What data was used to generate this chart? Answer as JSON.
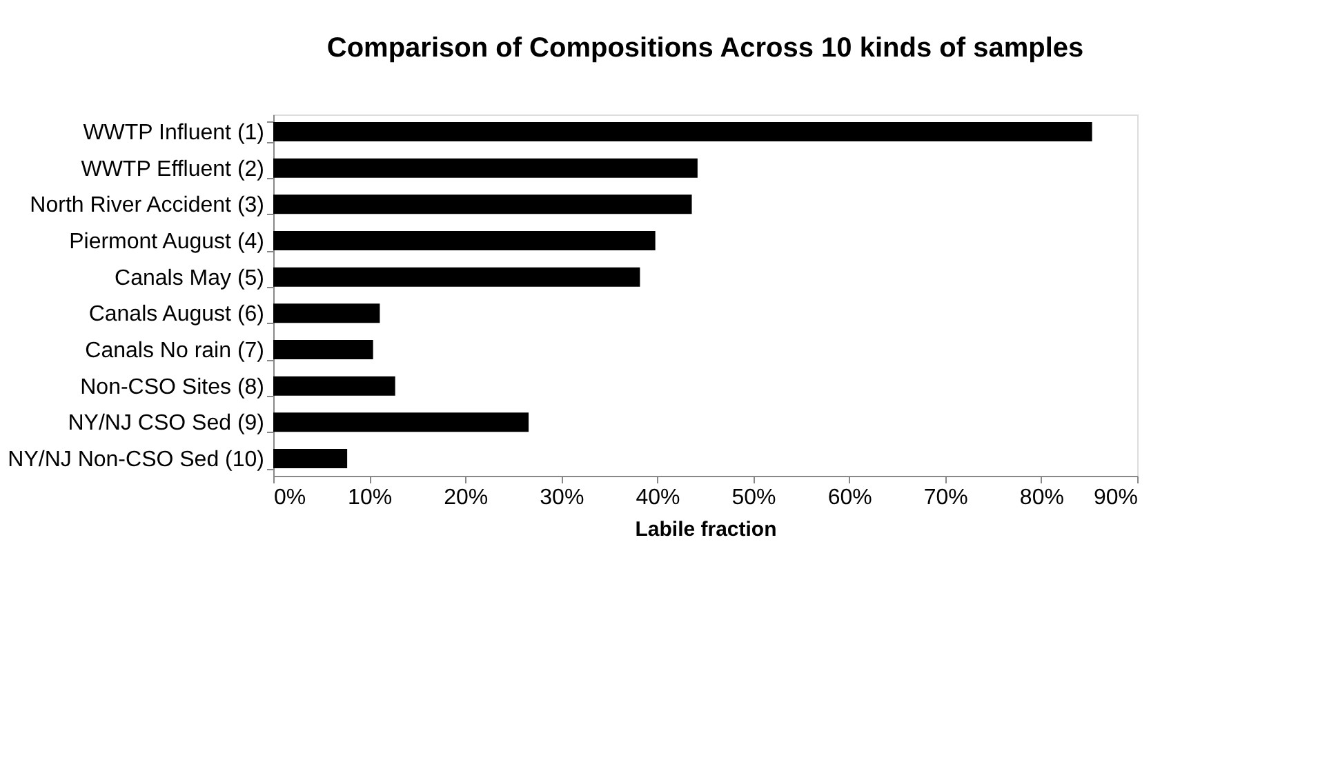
{
  "chart_data": {
    "type": "bar",
    "orientation": "horizontal",
    "title": "Comparison of Compositions Across 10 kinds of samples",
    "xlabel": "Labile fraction",
    "categories": [
      "WWTP Influent (1)",
      "WWTP Effluent (2)",
      "North River Accident (3)",
      "Piermont August (4)",
      "Canals May (5)",
      "Canals August (6)",
      "Canals No rain (7)",
      "Non-CSO Sites (8)",
      "NY/NJ CSO Sed (9)",
      "NY/NJ Non-CSO Sed (10)"
    ],
    "values": [
      85.3,
      44.2,
      43.6,
      39.8,
      38.2,
      11.1,
      10.4,
      12.7,
      26.6,
      7.7
    ],
    "color": "#000000",
    "xlim": [
      0,
      90
    ],
    "xticks": [
      {
        "value": 0,
        "label": "0%"
      },
      {
        "value": 10,
        "label": "10%"
      },
      {
        "value": 20,
        "label": "20%"
      },
      {
        "value": 30,
        "label": "30%"
      },
      {
        "value": 40,
        "label": "40%"
      },
      {
        "value": 50,
        "label": "50%"
      },
      {
        "value": 60,
        "label": "60%"
      },
      {
        "value": 70,
        "label": "70%"
      },
      {
        "value": 80,
        "label": "80%"
      },
      {
        "value": 90,
        "label": "90%"
      }
    ],
    "grid": false
  }
}
